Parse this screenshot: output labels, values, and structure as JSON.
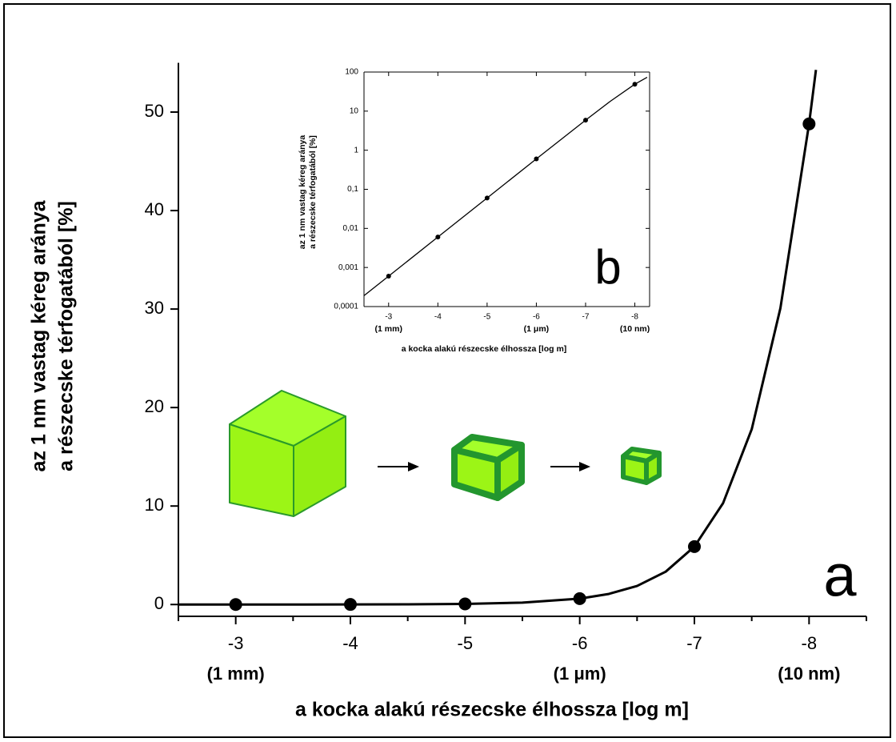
{
  "chart_data": [
    {
      "type": "line",
      "panel_label": "a",
      "xlabel": "a kocka alakú részecske élhossza [log m]",
      "ylabel": [
        "az 1 nm vastag kéreg aránya",
        "a részecske térfogatából [%]"
      ],
      "xlim": [
        -2.5,
        -8.5
      ],
      "xticks": [
        -3,
        -4,
        -5,
        -6,
        -7,
        -8
      ],
      "xminor_ticks": [
        -2.5,
        -3.5,
        -4.5,
        -5.5,
        -6.5,
        -7.5,
        -8.5
      ],
      "x_annotations": [
        {
          "x": -3,
          "label": "(1 mm)"
        },
        {
          "x": -6,
          "label": "(1 μm)"
        },
        {
          "x": -8,
          "label": "(10 nm)"
        }
      ],
      "ylim": [
        -1.2,
        55
      ],
      "yticks": [
        0,
        10,
        20,
        30,
        40,
        50
      ],
      "yscale": "linear",
      "frame": false,
      "series": [
        {
          "color": "#000000",
          "marker": false,
          "x": [
            -2.5,
            -3,
            -3.5,
            -4,
            -4.5,
            -5,
            -5.5,
            -6,
            -6.25,
            -6.5,
            -6.75,
            -7,
            -7.25,
            -7.5,
            -7.75,
            -8,
            -8.06
          ],
          "values": [
            0.00019,
            0.0006,
            0.0019,
            0.006,
            0.019,
            0.06,
            0.19,
            0.599,
            1.063,
            1.885,
            3.336,
            5.88,
            10.29,
            17.8,
            30.09,
            48.8,
            54.28
          ]
        },
        {
          "color": "#000000",
          "marker": true,
          "line": false,
          "x": [
            -3,
            -4,
            -5,
            -6,
            -7,
            -8
          ],
          "values": [
            0.0006,
            0.006,
            0.06,
            0.599,
            5.88,
            48.8
          ]
        }
      ]
    },
    {
      "type": "line",
      "panel_label": "b",
      "xlabel": "a kocka alakú részecske élhossza [log m]",
      "ylabel": [
        "az 1 nm vastag kéreg aránya",
        "a részecske térfogatából [%]"
      ],
      "xlim": [
        -2.5,
        -8.3
      ],
      "xticks": [
        -3,
        -4,
        -5,
        -6,
        -7,
        -8
      ],
      "xminor_ticks": [],
      "x_annotations": [
        {
          "x": -3,
          "label": "(1 mm)"
        },
        {
          "x": -6,
          "label": "(1 μm)"
        },
        {
          "x": -8,
          "label": "(10 nm)"
        }
      ],
      "ylim": [
        0.0001,
        100
      ],
      "yscale": "log",
      "frame": true,
      "yticks": [
        {
          "value": 0.0001,
          "label": "0,0001"
        },
        {
          "value": 0.001,
          "label": "0,001"
        },
        {
          "value": 0.01,
          "label": "0,01"
        },
        {
          "value": 0.1,
          "label": "0,1"
        },
        1,
        10,
        100
      ],
      "series": [
        {
          "color": "#000000",
          "marker": false,
          "x": [
            -2.5,
            -3,
            -4,
            -5,
            -6,
            -7,
            -7.5,
            -8,
            -8.25
          ],
          "values": [
            0.00019,
            0.0006,
            0.006,
            0.06,
            0.599,
            5.88,
            17.8,
            48.8,
            73.3
          ]
        },
        {
          "color": "#000000",
          "marker": true,
          "line": false,
          "x": [
            -3,
            -4,
            -5,
            -6,
            -7,
            -8
          ],
          "values": [
            0.0006,
            0.006,
            0.06,
            0.599,
            5.88,
            48.8
          ]
        }
      ]
    }
  ]
}
